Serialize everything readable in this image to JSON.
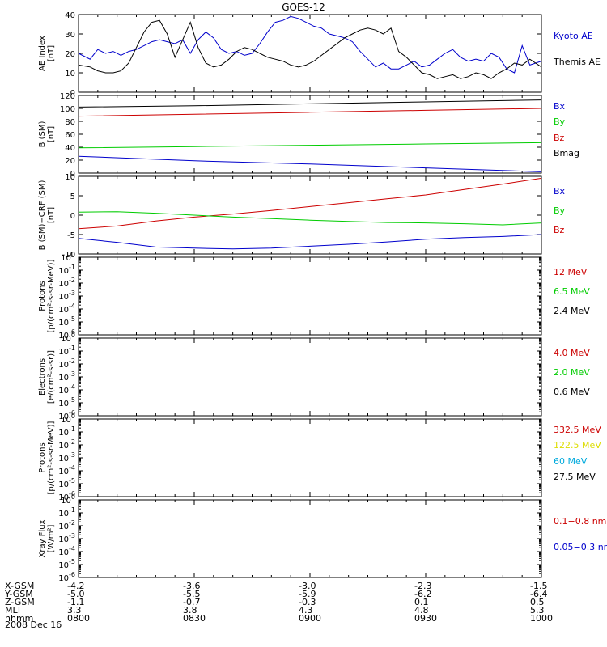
{
  "title": "GOES-12",
  "date": "2008 Dec 16",
  "x_ticks": [
    "0800",
    "0830",
    "0900",
    "0930",
    "1000"
  ],
  "ephemeris": [
    {
      "name": "X-GSM",
      "values": [
        "-4.2",
        "-3.6",
        "-3.0",
        "-2.3",
        "-1.5"
      ]
    },
    {
      "name": "Y-GSM",
      "values": [
        "-5.0",
        "-5.5",
        "-5.9",
        "-6.2",
        "-6.4"
      ]
    },
    {
      "name": "Z-GSM",
      "values": [
        "-1.1",
        "-0.7",
        "-0.3",
        "0.1",
        "0.5"
      ]
    },
    {
      "name": "MLT",
      "values": [
        "3.3",
        "3.8",
        "4.3",
        "4.8",
        "5.3"
      ]
    },
    {
      "name": "hhmm",
      "values": [
        "0800",
        "0830",
        "0900",
        "0930",
        "1000"
      ]
    }
  ],
  "panels": [
    {
      "ylabel": "AE Index\n[nT]",
      "legend": [
        {
          "text": "Kyoto AE",
          "color": "#0000cc"
        },
        {
          "text": "Themis AE",
          "color": "#000000"
        }
      ]
    },
    {
      "ylabel": "B (SM)\n[nT]",
      "legend": [
        {
          "text": "Bx",
          "color": "#0000cc"
        },
        {
          "text": "By",
          "color": "#00cc00"
        },
        {
          "text": "Bz",
          "color": "#cc0000"
        },
        {
          "text": "Bmag",
          "color": "#000000"
        }
      ]
    },
    {
      "ylabel": "B (SM)−CRF (SM)\n[nT]",
      "legend": [
        {
          "text": "Bx",
          "color": "#0000cc"
        },
        {
          "text": "By",
          "color": "#00cc00"
        },
        {
          "text": "Bz",
          "color": "#cc0000"
        }
      ]
    },
    {
      "ylabel": "Protons\n[p/(cm²-s-sr-MeV)]",
      "legend": [
        {
          "text": "12 MeV",
          "color": "#cc0000"
        },
        {
          "text": "6.5 MeV",
          "color": "#00cc00"
        },
        {
          "text": "2.4 MeV",
          "color": "#000000"
        }
      ]
    },
    {
      "ylabel": "Electrons\n[e/(cm²-s-sr)]",
      "legend": [
        {
          "text": "4.0 MeV",
          "color": "#cc0000"
        },
        {
          "text": "2.0 MeV",
          "color": "#00cc00"
        },
        {
          "text": "0.6 MeV",
          "color": "#000000"
        }
      ]
    },
    {
      "ylabel": "Protons\n[p/(cm²-s-sr-MeV)]",
      "legend": [
        {
          "text": "332.5 MeV",
          "color": "#cc0000"
        },
        {
          "text": "122.5 MeV",
          "color": "#dddd00"
        },
        {
          "text": "60 MeV",
          "color": "#00aadd"
        },
        {
          "text": "27.5 MeV",
          "color": "#000000"
        }
      ]
    },
    {
      "ylabel": "Xray Flux\n[W/m²]",
      "legend": [
        {
          "text": "0.1−0.8 nm",
          "color": "#cc0000"
        },
        {
          "text": "0.05−0.3 nm",
          "color": "#0000cc"
        }
      ]
    }
  ],
  "chart_data": [
    {
      "type": "line",
      "ylabel": "AE Index [nT]",
      "ylim": [
        0,
        40
      ],
      "yticks": [
        "0",
        "10",
        "20",
        "30",
        "40"
      ],
      "x_unit": "time",
      "xlim": [
        "08:00",
        "10:00"
      ],
      "series": [
        {
          "name": "Kyoto AE",
          "color": "#0000cc",
          "x": [
            "08:00",
            "08:03",
            "08:05",
            "08:07",
            "08:09",
            "08:11",
            "08:13",
            "08:15",
            "08:17",
            "08:19",
            "08:21",
            "08:23",
            "08:25",
            "08:27",
            "08:29",
            "08:31",
            "08:33",
            "08:35",
            "08:37",
            "08:39",
            "08:41",
            "08:43",
            "08:45",
            "08:47",
            "08:49",
            "08:51",
            "08:53",
            "08:55",
            "08:57",
            "08:59",
            "09:01",
            "09:03",
            "09:05",
            "09:07",
            "09:09",
            "09:11",
            "09:13",
            "09:15",
            "09:17",
            "09:19",
            "09:21",
            "09:23",
            "09:25",
            "09:27",
            "09:29",
            "09:31",
            "09:33",
            "09:35",
            "09:37",
            "09:39",
            "09:41",
            "09:43",
            "09:45",
            "09:47",
            "09:49",
            "09:51",
            "09:53",
            "09:55",
            "09:57",
            "10:00"
          ],
          "y": [
            20,
            17,
            22,
            20,
            21,
            19,
            21,
            22,
            24,
            26,
            27,
            26,
            25,
            27,
            20,
            27,
            31,
            28,
            22,
            20,
            21,
            19,
            20,
            25,
            31,
            36,
            37,
            39,
            38,
            36,
            34,
            33,
            30,
            29,
            28,
            26,
            21,
            17,
            13,
            15,
            12,
            12,
            14,
            16,
            13,
            14,
            17,
            20,
            22,
            18,
            16,
            17,
            16,
            20,
            18,
            12,
            10,
            24,
            14,
            16
          ]
        },
        {
          "name": "Themis AE",
          "color": "#000000",
          "x": [
            "08:00",
            "08:03",
            "08:05",
            "08:07",
            "08:09",
            "08:11",
            "08:13",
            "08:15",
            "08:17",
            "08:19",
            "08:21",
            "08:23",
            "08:25",
            "08:27",
            "08:29",
            "08:31",
            "08:33",
            "08:35",
            "08:37",
            "08:39",
            "08:41",
            "08:43",
            "08:45",
            "08:47",
            "08:49",
            "08:51",
            "08:53",
            "08:55",
            "08:57",
            "08:59",
            "09:01",
            "09:03",
            "09:05",
            "09:07",
            "09:09",
            "09:11",
            "09:13",
            "09:15",
            "09:17",
            "09:19",
            "09:21",
            "09:23",
            "09:25",
            "09:27",
            "09:29",
            "09:31",
            "09:33",
            "09:35",
            "09:37",
            "09:39",
            "09:41",
            "09:43",
            "09:45",
            "09:47",
            "09:49",
            "09:51",
            "09:53",
            "09:55",
            "09:57",
            "10:00"
          ],
          "y": [
            14,
            13,
            11,
            10,
            10,
            11,
            15,
            23,
            31,
            36,
            37,
            30,
            18,
            27,
            36,
            23,
            15,
            13,
            14,
            17,
            21,
            23,
            22,
            20,
            18,
            17,
            16,
            14,
            13,
            14,
            16,
            19,
            22,
            25,
            28,
            30,
            32,
            33,
            32,
            30,
            33,
            21,
            18,
            14,
            10,
            9,
            7,
            8,
            9,
            7,
            8,
            10,
            9,
            7,
            10,
            12,
            15,
            14,
            17,
            13
          ]
        }
      ]
    },
    {
      "type": "line",
      "ylabel": "B (SM) [nT]",
      "ylim": [
        0,
        120
      ],
      "yticks": [
        "0",
        "20",
        "40",
        "60",
        "80",
        "100",
        "120"
      ],
      "series": [
        {
          "name": "Bmag",
          "color": "#000000",
          "x": [
            "08:00",
            "08:30",
            "09:00",
            "09:30",
            "10:00"
          ],
          "y": [
            102,
            104,
            107,
            110,
            113
          ]
        },
        {
          "name": "Bz",
          "color": "#cc0000",
          "x": [
            "08:00",
            "08:30",
            "09:00",
            "09:30",
            "10:00"
          ],
          "y": [
            88,
            91,
            94,
            97,
            100
          ]
        },
        {
          "name": "By",
          "color": "#00cc00",
          "x": [
            "08:00",
            "08:30",
            "09:00",
            "09:30",
            "10:00"
          ],
          "y": [
            39,
            41,
            43,
            45,
            47
          ]
        },
        {
          "name": "Bx",
          "color": "#0000cc",
          "x": [
            "08:00",
            "08:30",
            "09:00",
            "09:30",
            "10:00"
          ],
          "y": [
            26,
            19,
            14,
            8,
            2
          ]
        }
      ]
    },
    {
      "type": "line",
      "ylabel": "B (SM)−CRF (SM) [nT]",
      "ylim": [
        -10,
        10
      ],
      "yticks": [
        "-10",
        "-5",
        "0",
        "5",
        "10"
      ],
      "series": [
        {
          "name": "Bz",
          "color": "#cc0000",
          "x": [
            "08:00",
            "08:10",
            "08:20",
            "08:30",
            "08:40",
            "08:50",
            "09:00",
            "09:10",
            "09:20",
            "09:30",
            "09:40",
            "09:50",
            "10:00"
          ],
          "y": [
            -3.5,
            -2.8,
            -1.5,
            -0.5,
            0.3,
            1.2,
            2.2,
            3.2,
            4.2,
            5.2,
            6.6,
            8.0,
            9.5
          ]
        },
        {
          "name": "By",
          "color": "#00cc00",
          "x": [
            "08:00",
            "08:10",
            "08:20",
            "08:30",
            "08:40",
            "08:50",
            "09:00",
            "09:10",
            "09:20",
            "09:30",
            "09:40",
            "09:50",
            "10:00"
          ],
          "y": [
            0.8,
            0.9,
            0.5,
            0,
            -0.5,
            -0.9,
            -1.3,
            -1.6,
            -1.9,
            -2.0,
            -2.2,
            -2.5,
            -2.0
          ]
        },
        {
          "name": "Bx",
          "color": "#0000cc",
          "x": [
            "08:00",
            "08:10",
            "08:20",
            "08:30",
            "08:40",
            "08:50",
            "09:00",
            "09:10",
            "09:20",
            "09:30",
            "09:40",
            "09:50",
            "10:00"
          ],
          "y": [
            -6.0,
            -7.0,
            -8.2,
            -8.5,
            -8.7,
            -8.5,
            -8.0,
            -7.5,
            -6.9,
            -6.2,
            -5.8,
            -5.5,
            -5.0
          ]
        }
      ]
    },
    {
      "type": "line",
      "scale": "log",
      "ylabel": "Protons",
      "ylim": [
        1e-06,
        1
      ],
      "yticks_exp": [
        0,
        -1,
        -2,
        -3,
        -4,
        -5,
        -6
      ],
      "series": []
    },
    {
      "type": "line",
      "scale": "log",
      "ylabel": "Electrons",
      "ylim": [
        1e-06,
        1
      ],
      "yticks_exp": [
        0,
        -1,
        -2,
        -3,
        -4,
        -5,
        -6
      ],
      "series": []
    },
    {
      "type": "line",
      "scale": "log",
      "ylabel": "Protons",
      "ylim": [
        1e-06,
        1
      ],
      "yticks_exp": [
        0,
        -1,
        -2,
        -3,
        -4,
        -5,
        -6
      ],
      "series": []
    },
    {
      "type": "line",
      "scale": "log",
      "ylabel": "Xray Flux",
      "ylim": [
        1e-06,
        1
      ],
      "yticks_exp": [
        0,
        -1,
        -2,
        -3,
        -4,
        -5,
        -6
      ],
      "series": []
    }
  ]
}
